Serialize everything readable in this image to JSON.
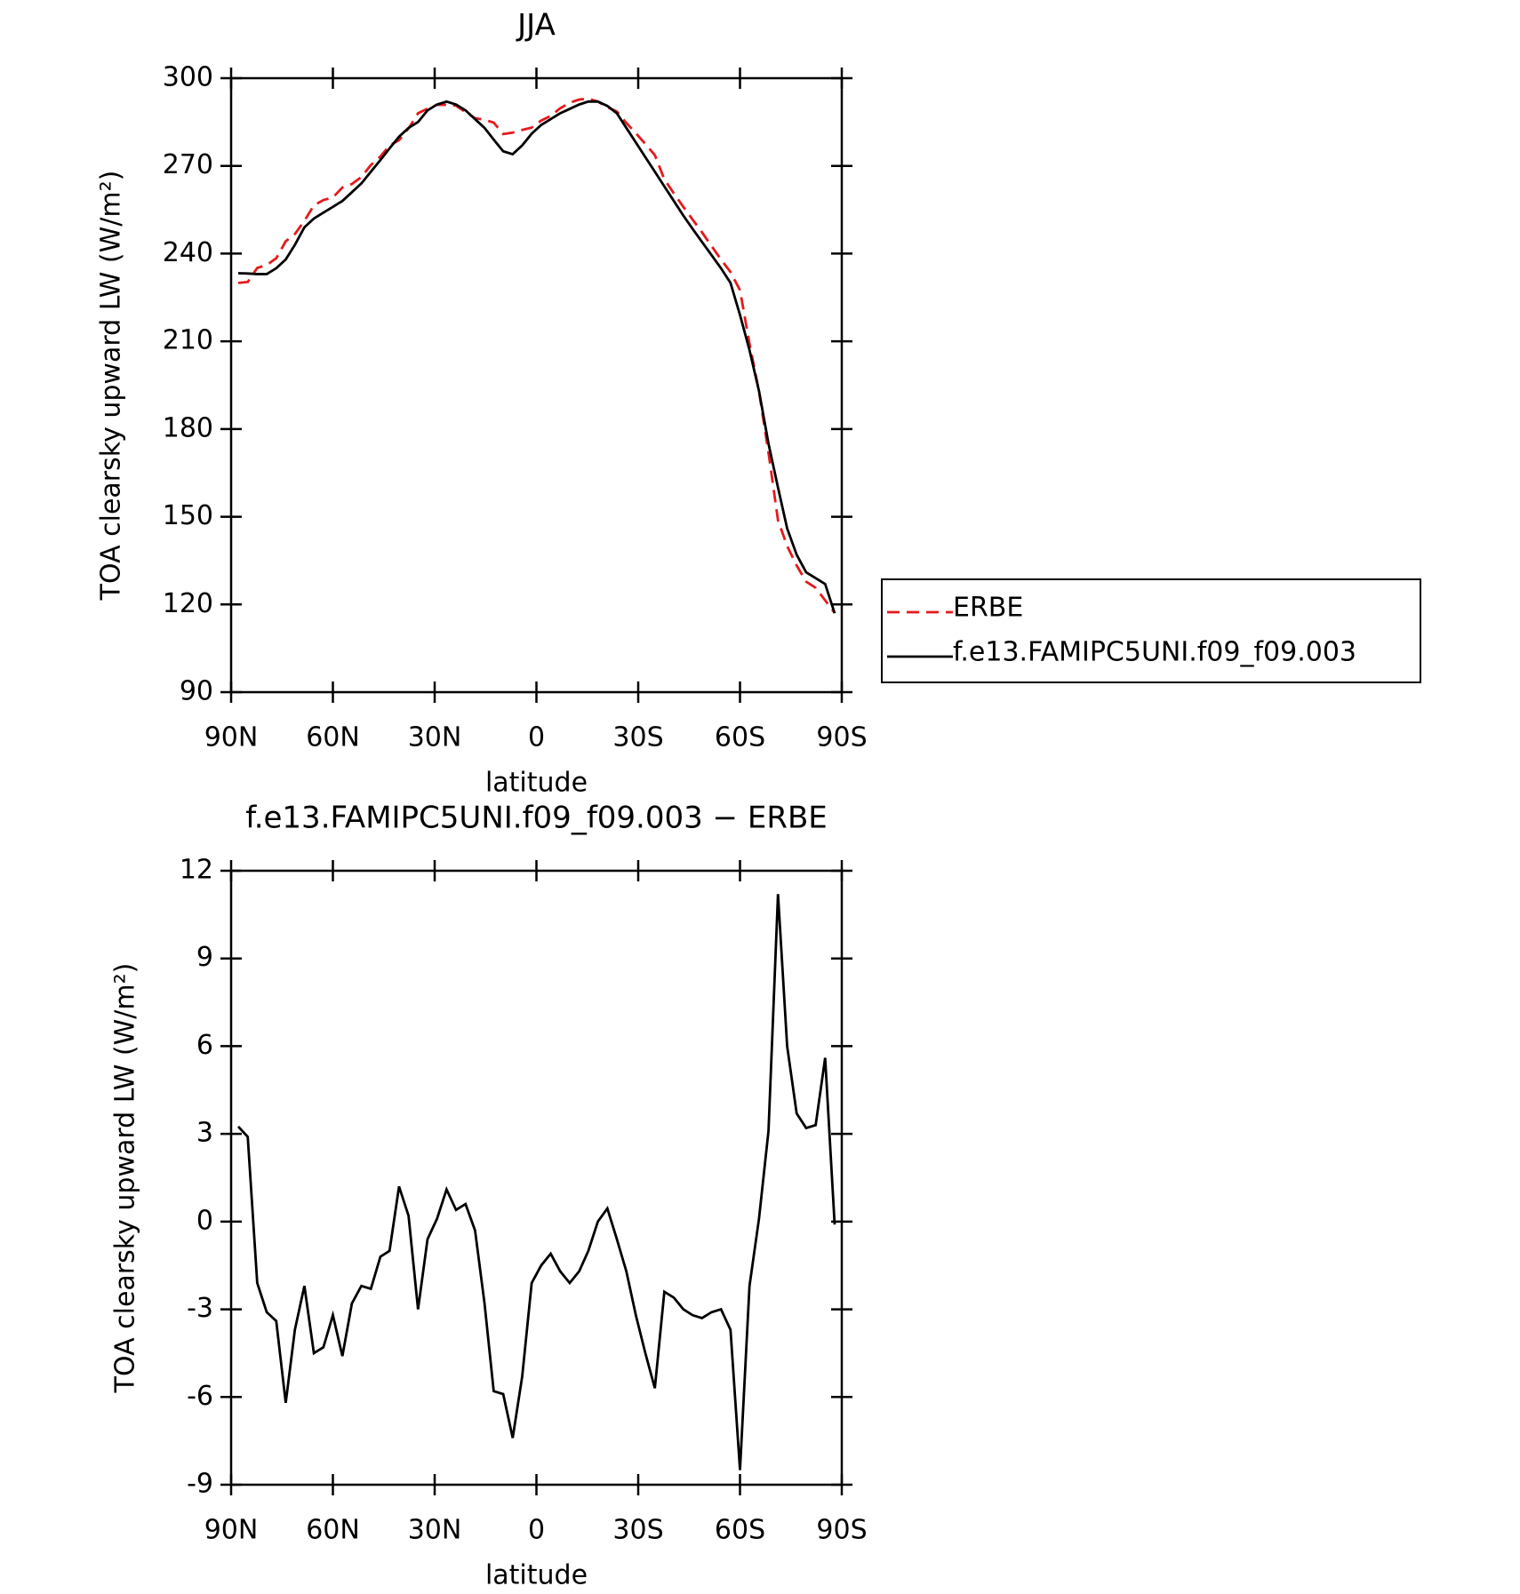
{
  "chart_data": [
    {
      "type": "line",
      "title": "JJA",
      "xlabel": "latitude",
      "ylabel": "TOA clearsky upward LW (W/m²)",
      "x": [
        87.9,
        85.1,
        82.3,
        79.5,
        76.7,
        73.9,
        71.2,
        68.4,
        65.6,
        62.8,
        60.0,
        57.2,
        54.4,
        51.6,
        48.8,
        46.0,
        43.3,
        40.5,
        37.7,
        34.9,
        32.1,
        29.3,
        26.5,
        23.7,
        20.9,
        18.1,
        15.3,
        12.6,
        9.8,
        7.0,
        4.2,
        1.4,
        -1.4,
        -4.2,
        -7.0,
        -9.8,
        -12.6,
        -15.3,
        -18.1,
        -20.9,
        -23.7,
        -26.5,
        -29.3,
        -32.1,
        -34.9,
        -37.7,
        -40.5,
        -43.3,
        -46.0,
        -48.8,
        -51.6,
        -54.4,
        -57.2,
        -60.0,
        -62.8,
        -65.6,
        -68.4,
        -71.2,
        -73.9,
        -76.7,
        -79.5,
        -82.3,
        -85.1,
        -87.9
      ],
      "series": [
        {
          "name": "ERBE",
          "color": "#e41a1c",
          "dash": true,
          "values": [
            230.0,
            230.3,
            235.1,
            236.1,
            238.4,
            244.2,
            246.7,
            251.2,
            256.5,
            258.3,
            259.2,
            262.6,
            263.8,
            266.2,
            270.3,
            273.2,
            277.0,
            278.8,
            282.8,
            288.0,
            289.6,
            290.9,
            290.9,
            290.6,
            288.4,
            286.3,
            285.8,
            284.8,
            280.9,
            281.4,
            282.3,
            283.1,
            285.5,
            287.1,
            289.7,
            291.6,
            292.7,
            293.0,
            292.0,
            290.1,
            288.6,
            284.7,
            281.2,
            277.5,
            273.7,
            265.4,
            260.6,
            256.0,
            251.7,
            247.3,
            242.6,
            238.0,
            233.7,
            227.5,
            209.2,
            192.9,
            171.9,
            148.8,
            140.0,
            133.3,
            127.8,
            125.7,
            121.4,
            117.1
          ]
        },
        {
          "name": "f.e13.FAMIPC5UNI.f09_f09.003",
          "color": "#000000",
          "dash": false,
          "values": [
            233.3,
            233.2,
            233.0,
            233.0,
            235,
            238,
            243,
            249,
            252,
            254,
            256,
            258,
            261,
            264,
            268,
            272,
            276,
            280,
            283,
            285,
            289,
            291,
            292,
            291,
            289,
            286,
            283,
            279,
            275,
            274,
            277,
            281,
            284,
            286,
            288,
            289.5,
            291,
            292,
            292,
            290.5,
            288,
            283,
            278,
            273,
            268,
            263,
            258,
            253,
            248.5,
            244,
            239.5,
            235,
            230,
            219,
            207,
            193,
            175,
            160,
            146,
            137,
            131,
            129,
            127,
            117
          ]
        }
      ],
      "xlim": [
        90,
        -90
      ],
      "xticks": [
        {
          "value": 90,
          "label": "90N"
        },
        {
          "value": 60,
          "label": "60N"
        },
        {
          "value": 30,
          "label": "30N"
        },
        0,
        {
          "value": -30,
          "label": "30S"
        },
        {
          "value": -60,
          "label": "60S"
        },
        {
          "value": -90,
          "label": "90S"
        }
      ],
      "ylim": [
        90,
        300
      ],
      "yticks": [
        90,
        120,
        150,
        180,
        210,
        240,
        270,
        300
      ],
      "legend": "right"
    },
    {
      "type": "line",
      "title": "f.e13.FAMIPC5UNI.f09_f09.003 − ERBE",
      "xlabel": "latitude",
      "ylabel": "TOA clearsky upward LW (W/m²)",
      "x": [
        87.9,
        85.1,
        82.3,
        79.5,
        76.7,
        73.9,
        71.2,
        68.4,
        65.6,
        62.8,
        60.0,
        57.2,
        54.4,
        51.6,
        48.8,
        46.0,
        43.3,
        40.5,
        37.7,
        34.9,
        32.1,
        29.3,
        26.5,
        23.7,
        20.9,
        18.1,
        15.3,
        12.6,
        9.8,
        7.0,
        4.2,
        1.4,
        -1.4,
        -4.2,
        -7.0,
        -9.8,
        -12.6,
        -15.3,
        -18.1,
        -20.9,
        -23.7,
        -26.5,
        -29.3,
        -32.1,
        -34.9,
        -37.7,
        -40.5,
        -43.3,
        -46.0,
        -48.8,
        -51.6,
        -54.4,
        -57.2,
        -60.0,
        -62.8,
        -65.6,
        -68.4,
        -71.2,
        -73.9,
        -76.7,
        -79.5,
        -82.3,
        -85.1,
        -87.9
      ],
      "series": [
        {
          "color": "#000000",
          "dash": false,
          "values": [
            3.25,
            2.9,
            -2.1,
            -3.1,
            -3.4,
            -6.2,
            -3.7,
            -2.2,
            -4.5,
            -4.3,
            -3.2,
            -4.6,
            -2.8,
            -2.2,
            -2.3,
            -1.2,
            -1.0,
            1.2,
            0.2,
            -3.0,
            -0.6,
            0.1,
            1.1,
            0.4,
            0.6,
            -0.3,
            -2.8,
            -5.8,
            -5.9,
            -7.4,
            -5.3,
            -2.1,
            -1.5,
            -1.1,
            -1.7,
            -2.1,
            -1.7,
            -1.0,
            0.0,
            0.45,
            -0.6,
            -1.7,
            -3.2,
            -4.5,
            -5.7,
            -2.4,
            -2.6,
            -3.0,
            -3.2,
            -3.3,
            -3.1,
            -3.0,
            -3.7,
            -8.5,
            -2.2,
            0.1,
            3.1,
            11.2,
            6.0,
            3.7,
            3.2,
            3.3,
            5.6,
            -0.1
          ]
        }
      ],
      "xlim": [
        90,
        -90
      ],
      "xticks": [
        {
          "value": 90,
          "label": "90N"
        },
        {
          "value": 60,
          "label": "60N"
        },
        {
          "value": 30,
          "label": "30N"
        },
        0,
        {
          "value": -30,
          "label": "30S"
        },
        {
          "value": -60,
          "label": "60S"
        },
        {
          "value": -90,
          "label": "90S"
        }
      ],
      "ylim": [
        -9,
        12
      ],
      "yticks": [
        -9,
        -6,
        -3,
        0,
        3,
        6,
        9,
        12
      ]
    }
  ]
}
